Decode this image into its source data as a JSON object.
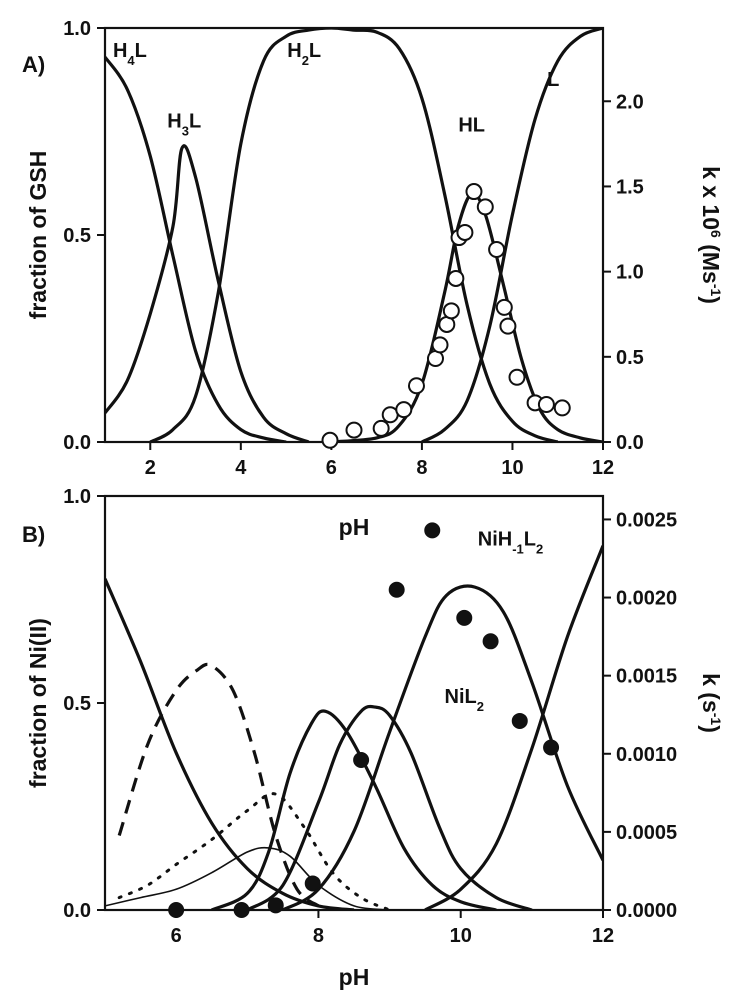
{
  "chart_data": [
    {
      "type": "line",
      "panel_label": "A)",
      "xlabel": "pH",
      "ylabel": "fraction of GSH",
      "y2label_html": "k x 10<tspan baseline-shift='super' font-size='14'>6</tspan> (Ms<tspan baseline-shift='super' font-size='14'>-1</tspan>)",
      "y2label_plain": "k x 106 (Ms-1)",
      "xlim": [
        1,
        12
      ],
      "ylim": [
        0,
        1
      ],
      "y2lim": [
        0,
        2.43
      ],
      "xticks": [
        2,
        4,
        6,
        8,
        10,
        12
      ],
      "yticks": [
        0.0,
        0.5,
        1.0
      ],
      "ytick_labels": [
        "0.0",
        "0.5",
        "1.0"
      ],
      "y2ticks": [
        0.0,
        0.5,
        1.0,
        1.5,
        2.0
      ],
      "y2tick_labels": [
        "0.0",
        "0.5",
        "1.0",
        "1.5",
        "2.0"
      ],
      "series": [
        {
          "label": "H4L",
          "label_html": "H<tspan baseline-shift='sub' font-size='13'>4</tspan>L",
          "label_pos": [
            1.55,
            0.93
          ],
          "style": "solid",
          "x": [
            1.0,
            1.5,
            2.0,
            2.5,
            3.0,
            3.5,
            4.0,
            4.5,
            5.0
          ],
          "y": [
            0.93,
            0.85,
            0.69,
            0.45,
            0.22,
            0.09,
            0.03,
            0.01,
            0.0
          ]
        },
        {
          "label": "H3L",
          "label_html": "H<tspan baseline-shift='sub' font-size='13'>3</tspan>L",
          "label_pos": [
            2.75,
            0.76
          ],
          "style": "solid",
          "x": [
            1.0,
            1.5,
            2.0,
            2.5,
            2.7,
            3.0,
            3.5,
            4.0,
            4.5,
            5.0,
            5.5
          ],
          "y": [
            0.07,
            0.15,
            0.31,
            0.52,
            0.71,
            0.64,
            0.39,
            0.17,
            0.06,
            0.02,
            0.0
          ]
        },
        {
          "label": "H2L",
          "label_html": "H<tspan baseline-shift='sub' font-size='13'>2</tspan>L",
          "label_pos": [
            5.4,
            0.93
          ],
          "style": "solid",
          "x": [
            2.0,
            2.5,
            3.0,
            3.5,
            4.0,
            4.5,
            5.0,
            5.5,
            6.0,
            6.5,
            7.0,
            7.5,
            8.0,
            8.5,
            9.0,
            9.5,
            10.0,
            10.5,
            11.0
          ],
          "y": [
            0.0,
            0.03,
            0.11,
            0.36,
            0.72,
            0.92,
            0.98,
            0.995,
            1.0,
            0.995,
            0.99,
            0.95,
            0.83,
            0.6,
            0.33,
            0.14,
            0.05,
            0.015,
            0.0
          ]
        },
        {
          "label": "HL",
          "label_html": "HL",
          "label_pos": [
            9.1,
            0.75
          ],
          "style": "solid",
          "x": [
            6.0,
            7.0,
            7.5,
            8.0,
            8.5,
            8.8,
            9.1,
            9.4,
            9.8,
            10.2,
            10.6,
            11.0,
            11.5,
            12.0
          ],
          "y": [
            0.0,
            0.01,
            0.04,
            0.14,
            0.36,
            0.52,
            0.6,
            0.55,
            0.38,
            0.2,
            0.08,
            0.03,
            0.01,
            0.0
          ]
        },
        {
          "label": "L",
          "label_html": "L",
          "label_pos": [
            10.9,
            0.86
          ],
          "style": "solid",
          "x": [
            8.0,
            8.5,
            9.0,
            9.5,
            10.0,
            10.5,
            11.0,
            11.5,
            12.0
          ],
          "y": [
            0.0,
            0.03,
            0.1,
            0.28,
            0.55,
            0.78,
            0.92,
            0.98,
            1.0
          ]
        }
      ],
      "points": {
        "axis": "right",
        "marker": "open-circle",
        "x": [
          5.97,
          6.5,
          7.1,
          7.3,
          7.6,
          7.88,
          8.3,
          8.4,
          8.55,
          8.65,
          8.75,
          8.82,
          8.95,
          9.15,
          9.4,
          9.65,
          9.82,
          9.9,
          10.1,
          10.5,
          10.75,
          11.1
        ],
        "y": [
          0.01,
          0.07,
          0.08,
          0.16,
          0.19,
          0.33,
          0.49,
          0.57,
          0.69,
          0.77,
          0.96,
          1.2,
          1.23,
          1.47,
          1.38,
          1.13,
          0.79,
          0.68,
          0.38,
          0.23,
          0.22,
          0.2
        ]
      }
    },
    {
      "type": "line",
      "panel_label": "B)",
      "xlabel": "pH",
      "ylabel": "fraction of Ni(II)",
      "y2label_html": "k (s<tspan baseline-shift='super' font-size='14'>-1</tspan>)",
      "y2label_plain": "k (s-1)",
      "xlim": [
        5,
        12
      ],
      "ylim": [
        0,
        1
      ],
      "y2lim": [
        0,
        0.00265
      ],
      "xticks": [
        6,
        8,
        10,
        12
      ],
      "yticks": [
        0.0,
        0.5,
        1.0
      ],
      "ytick_labels": [
        "0.0",
        "0.5",
        "1.0"
      ],
      "y2ticks": [
        0.0,
        0.0005,
        0.001,
        0.0015,
        0.002,
        0.0025
      ],
      "y2tick_labels": [
        "0.0000",
        "0.0005",
        "0.0010",
        "0.0015",
        "0.0020",
        "0.0025"
      ],
      "series": [
        {
          "label": "",
          "style": "solid",
          "x": [
            5.0,
            5.5,
            6.0,
            6.5,
            7.0,
            7.5,
            8.0,
            8.5
          ],
          "y": [
            0.8,
            0.6,
            0.38,
            0.21,
            0.1,
            0.04,
            0.01,
            0.0
          ]
        },
        {
          "label": "",
          "style": "dash",
          "x": [
            5.2,
            5.6,
            6.0,
            6.3,
            6.5,
            6.8,
            7.1,
            7.4,
            7.7,
            8.0
          ],
          "y": [
            0.18,
            0.4,
            0.53,
            0.58,
            0.59,
            0.53,
            0.38,
            0.18,
            0.05,
            0.01
          ]
        },
        {
          "label": "",
          "style": "dotted",
          "x": [
            5.2,
            5.6,
            6.0,
            6.5,
            7.0,
            7.4,
            7.8,
            8.2,
            8.6,
            9.0
          ],
          "y": [
            0.03,
            0.06,
            0.11,
            0.17,
            0.24,
            0.28,
            0.2,
            0.09,
            0.03,
            0.0
          ]
        },
        {
          "label": "",
          "style": "thin",
          "x": [
            5.0,
            5.5,
            6.0,
            6.5,
            7.0,
            7.3,
            7.6,
            8.0,
            8.5,
            9.0
          ],
          "y": [
            0.01,
            0.03,
            0.05,
            0.09,
            0.14,
            0.15,
            0.13,
            0.06,
            0.01,
            0.0
          ]
        },
        {
          "label": "",
          "style": "solid",
          "x": [
            6.5,
            7.0,
            7.3,
            7.6,
            7.9,
            8.1,
            8.4,
            8.8,
            9.2,
            9.6,
            10.0,
            10.5
          ],
          "y": [
            0.0,
            0.04,
            0.14,
            0.33,
            0.45,
            0.48,
            0.43,
            0.3,
            0.15,
            0.06,
            0.02,
            0.0
          ]
        },
        {
          "label": "",
          "style": "solid",
          "x": [
            7.0,
            7.5,
            8.0,
            8.3,
            8.6,
            8.8,
            9.0,
            9.3,
            9.7,
            10.0,
            10.5,
            11.0
          ],
          "y": [
            0.0,
            0.06,
            0.26,
            0.4,
            0.48,
            0.49,
            0.47,
            0.38,
            0.2,
            0.1,
            0.03,
            0.0
          ]
        },
        {
          "label": "NiL2",
          "label_html": "NiL<tspan baseline-shift='sub' font-size='13'>2</tspan>",
          "label_pos": [
            10.05,
            0.5
          ],
          "style": "solid",
          "x": [
            7.5,
            8.0,
            8.5,
            9.0,
            9.5,
            9.8,
            10.2,
            10.6,
            11.0,
            11.5,
            12.0
          ],
          "y": [
            0.0,
            0.05,
            0.19,
            0.43,
            0.66,
            0.76,
            0.78,
            0.72,
            0.55,
            0.3,
            0.12
          ]
        },
        {
          "label": "NiH-1L2",
          "label_html": "NiH<tspan baseline-shift='sub' font-size='13'>-1</tspan>L<tspan baseline-shift='sub' font-size='13'>2</tspan>",
          "label_pos": [
            10.7,
            0.88
          ],
          "style": "solid",
          "x": [
            9.5,
            10.0,
            10.5,
            11.0,
            11.5,
            12.0
          ],
          "y": [
            0.0,
            0.05,
            0.16,
            0.39,
            0.66,
            0.88
          ]
        }
      ],
      "points": {
        "axis": "right",
        "marker": "filled-circle",
        "x": [
          6.0,
          6.92,
          7.4,
          7.92,
          8.6,
          9.1,
          9.6,
          10.05,
          10.42,
          10.83,
          11.27
        ],
        "y": [
          0.0,
          0.0,
          3e-05,
          0.00017,
          0.00096,
          0.00205,
          0.00243,
          0.00187,
          0.00172,
          0.00121,
          0.00104
        ]
      }
    }
  ]
}
